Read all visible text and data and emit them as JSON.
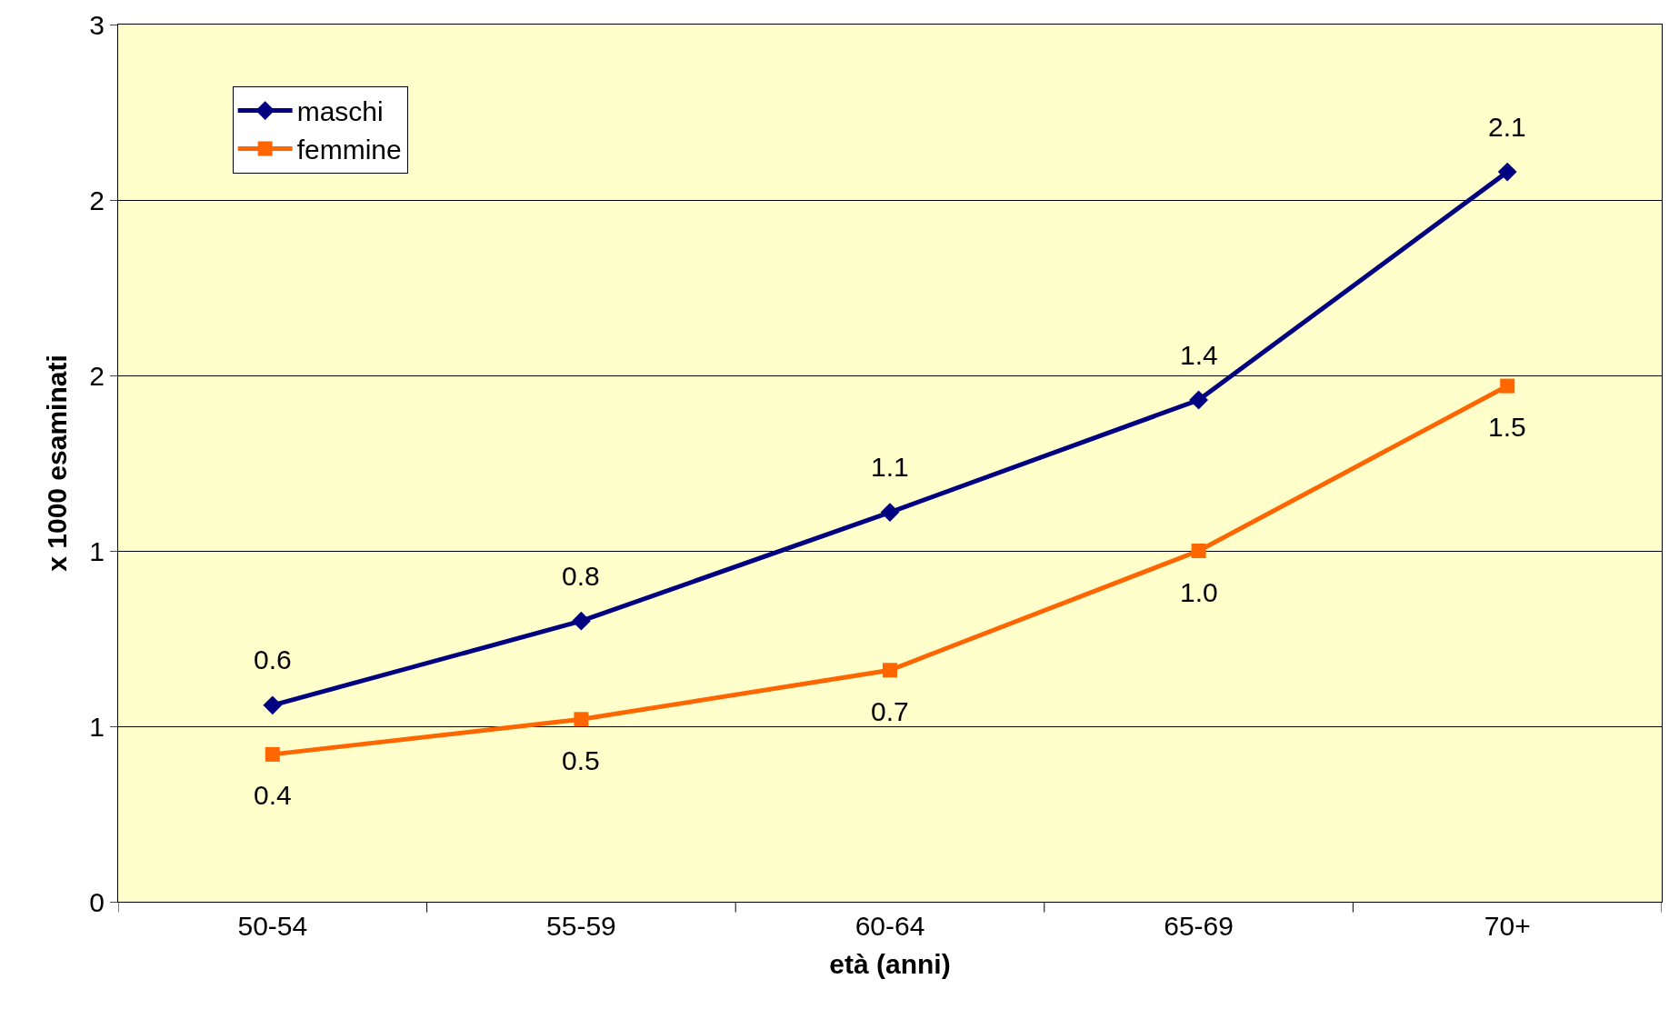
{
  "chart_data": {
    "type": "line",
    "xlabel": "età (anni)",
    "ylabel": "x 1000 esaminati",
    "categories": [
      "50-54",
      "55-59",
      "60-64",
      "65-69",
      "70+"
    ],
    "series": [
      {
        "name": "maschi",
        "color": "#000080",
        "marker": "diamond",
        "values": [
          0.56,
          0.8,
          1.11,
          1.43,
          2.08
        ],
        "value_labels": [
          "0.6",
          "0.8",
          "1.1",
          "1.4",
          "2.1"
        ]
      },
      {
        "name": "femmine",
        "color": "#ff6600",
        "marker": "square",
        "values": [
          0.42,
          0.52,
          0.66,
          1.0,
          1.47
        ],
        "value_labels": [
          "0.4",
          "0.5",
          "0.7",
          "1.0",
          "1.5"
        ]
      }
    ],
    "ylim": [
      0,
      2.5
    ],
    "yticks": [
      0,
      {
        "value": 0.5,
        "label": "1"
      },
      1,
      {
        "value": 1.5,
        "label": "2"
      },
      2,
      {
        "value": 2.5,
        "label": "3"
      }
    ],
    "grid": "y",
    "legend": "top left",
    "line_style": "solid"
  }
}
